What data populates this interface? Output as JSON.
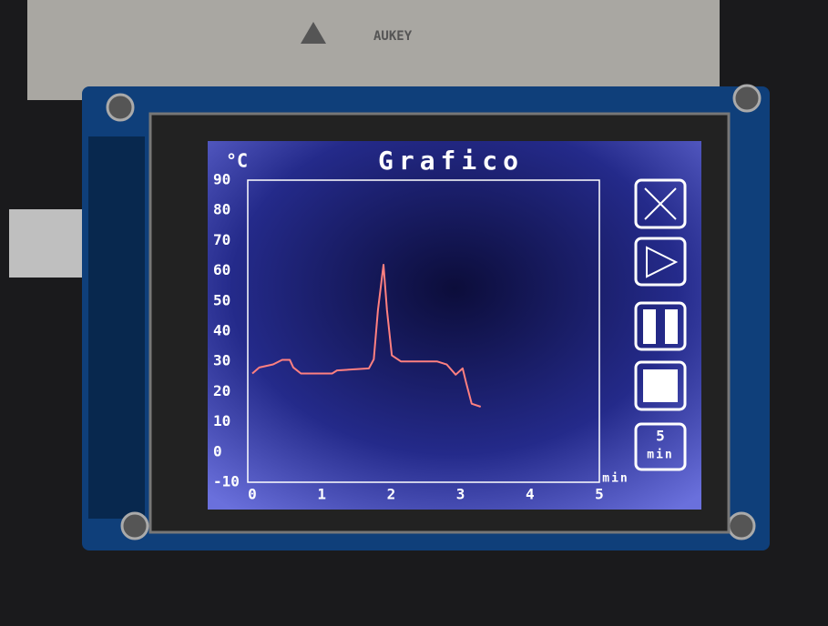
{
  "device": {
    "brand": "AUKEY"
  },
  "controls": {
    "interval": "5",
    "unit": "min"
  },
  "chart_data": {
    "type": "line",
    "title": "Grafico",
    "y_label": "°C",
    "x_label": "min",
    "x": [
      0,
      0.1,
      0.3,
      0.43,
      0.54,
      0.59,
      0.7,
      1.15,
      1.22,
      1.68,
      1.75,
      1.81,
      1.89,
      1.94,
      2.01,
      2.14,
      2.66,
      2.8,
      2.93,
      3.03,
      3.08,
      3.16,
      3.29
    ],
    "series": [
      {
        "color": "#ff8080",
        "values": [
          26,
          28,
          29,
          30.5,
          30.5,
          28,
          26,
          26,
          27,
          27.7,
          30.7,
          47,
          62,
          47,
          32,
          30,
          30,
          29,
          25.6,
          27.7,
          23,
          16,
          15
        ]
      }
    ],
    "xlim": [
      0,
      5
    ],
    "xticks": [
      0,
      1,
      2,
      3,
      4,
      5
    ],
    "ylim": [
      -10,
      90
    ],
    "yticks": [
      -10,
      0,
      10,
      20,
      30,
      40,
      50,
      60,
      70,
      80,
      90
    ],
    "grid": false
  }
}
